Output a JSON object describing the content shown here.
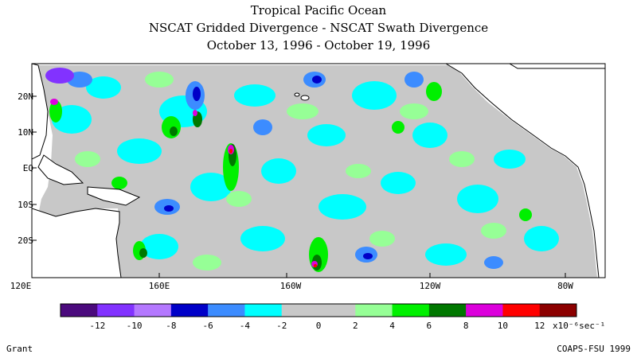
{
  "header": {
    "title": "Tropical Pacific Ocean",
    "subtitle": "NSCAT Gridded Divergence - NSCAT Swath Divergence",
    "date_range": "October 13, 1996 - October 19, 1996"
  },
  "map": {
    "lat_labels": [
      "20N",
      "10N",
      "EQ",
      "10S",
      "20S"
    ],
    "lon_labels": [
      "120E",
      "160E",
      "160W",
      "120W",
      "80W"
    ]
  },
  "colorbar": {
    "colors": [
      "#4b0a7d",
      "#8232ff",
      "#b478ff",
      "#0000c8",
      "#3c8cff",
      "#00ffff",
      "#c8c8c8",
      "#c8c8c8",
      "#96ff96",
      "#00f000",
      "#007800",
      "#dc00dc",
      "#ff0000",
      "#8c0000"
    ],
    "tick_labels": [
      "-12",
      "-10",
      "-8",
      "-6",
      "-4",
      "-2",
      "0",
      "2",
      "4",
      "6",
      "8",
      "10",
      "12"
    ],
    "units": "x10⁻⁶sec⁻¹"
  },
  "footer": {
    "left": "Grant",
    "right": "COAPS-FSU 1999"
  }
}
